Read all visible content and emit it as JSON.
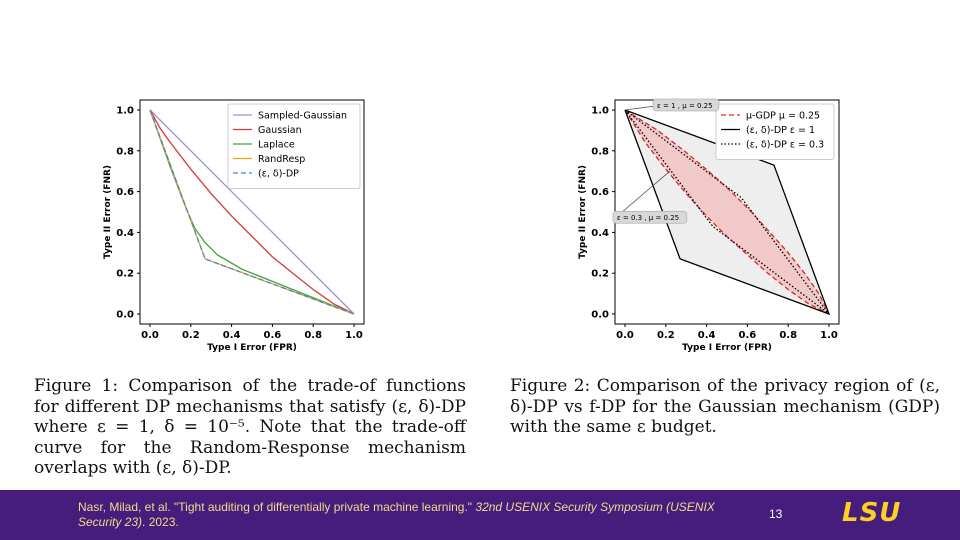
{
  "chart_data": [
    {
      "type": "line",
      "xlabel": "Type I Error (FPR)",
      "ylabel": "Type II Error (FNR)",
      "xlim": [
        0.0,
        1.0
      ],
      "ylim": [
        0.0,
        1.0
      ],
      "xticks": [
        "0.0",
        "0.2",
        "0.4",
        "0.6",
        "0.8",
        "1.0"
      ],
      "yticks": [
        "0.0",
        "0.2",
        "0.4",
        "0.6",
        "0.8",
        "1.0"
      ],
      "grid": false,
      "legend": "top-right",
      "series": [
        {
          "name": "Sampled-Gaussian",
          "color": "#9B8FD0",
          "dash": "solid",
          "x": [
            0,
            1
          ],
          "y": [
            1,
            0
          ]
        },
        {
          "name": "Gaussian",
          "color": "#D23A3A",
          "dash": "solid",
          "x": [
            0,
            0.05,
            0.1,
            0.2,
            0.3,
            0.4,
            0.5,
            0.6,
            0.7,
            0.8,
            0.9,
            1.0
          ],
          "y": [
            1,
            0.91,
            0.84,
            0.71,
            0.59,
            0.48,
            0.38,
            0.28,
            0.2,
            0.12,
            0.05,
            0
          ]
        },
        {
          "name": "Laplace",
          "color": "#3AA63A",
          "dash": "solid",
          "x": [
            0,
            0.1,
            0.18,
            0.22,
            0.27,
            0.33,
            0.45,
            0.6,
            0.8,
            1.0
          ],
          "y": [
            1,
            0.72,
            0.51,
            0.42,
            0.35,
            0.29,
            0.22,
            0.16,
            0.08,
            0
          ]
        },
        {
          "name": "RandResp",
          "color": "#F2A218",
          "dash": "solid",
          "x": [
            0,
            0.27,
            1
          ],
          "y": [
            1,
            0.27,
            0
          ]
        },
        {
          "name": "(ε, δ)-DP",
          "color": "#4A86C8",
          "dash": "dashed",
          "x": [
            0,
            0.27,
            1
          ],
          "y": [
            1,
            0.27,
            0
          ]
        }
      ]
    },
    {
      "type": "line",
      "xlabel": "Type I Error (FPR)",
      "ylabel": "Type II Error (FNR)",
      "xlim": [
        0.0,
        1.0
      ],
      "ylim": [
        0.0,
        1.0
      ],
      "xticks": [
        "0.0",
        "0.2",
        "0.4",
        "0.6",
        "0.8",
        "1.0"
      ],
      "yticks": [
        "0.0",
        "0.2",
        "0.4",
        "0.6",
        "0.8",
        "1.0"
      ],
      "grid": false,
      "legend": "top-right",
      "series": [
        {
          "name": "μ-GDP μ = 0.25",
          "color": "#D62728",
          "dash": "dashed",
          "x": [
            0,
            0.1,
            0.2,
            0.3,
            0.4,
            0.5,
            0.6,
            0.7,
            0.8,
            0.9,
            1
          ],
          "y": [
            1,
            0.84,
            0.71,
            0.59,
            0.48,
            0.38,
            0.29,
            0.2,
            0.12,
            0.05,
            0
          ],
          "mirror": true
        },
        {
          "name": "(ε, δ)-DP ε = 1",
          "color": "#000000",
          "dash": "solid",
          "x": [
            0,
            0.27,
            1,
            0.73,
            0
          ],
          "y": [
            1,
            0.27,
            0,
            0.73,
            1
          ]
        },
        {
          "name": "(ε, δ)-DP ε = 0.3",
          "color": "#000000",
          "dash": "dotted",
          "x": [
            0,
            0.43,
            1,
            0.57,
            0
          ],
          "y": [
            1,
            0.43,
            0,
            0.57,
            1
          ]
        }
      ],
      "annotations": [
        {
          "text": "ε = 1 , μ = 0.25",
          "x": 0,
          "y": 1
        },
        {
          "text": "ε = 0.3 , μ = 0.25",
          "x": 0.22,
          "y": 0.7
        }
      ]
    }
  ],
  "captions": {
    "fig1": "Figure 1: Comparison of the trade-of functions for different DP mechanisms that satisfy (ε, δ)-DP where ε = 1, δ = 10⁻⁵. Note that the trade-off curve for the Random-Response mechanism overlaps with (ε, δ)-DP.",
    "fig2": "Figure 2: Comparison of the privacy region of (ε, δ)-DP vs f-DP for the Gaussian mechanism (GDP) with the same ε budget."
  },
  "footer": {
    "citation_plain": "Nasr, Milad, et al. \"Tight auditing of differentially private machine learning.\" ",
    "citation_italic": "32nd USENIX Security Symposium (USENIX Security 23)",
    "citation_end": ". 2023.",
    "page_number": "13",
    "logo_text": "LSU",
    "background": "#461D7C",
    "logo_color": "#FDD023"
  }
}
